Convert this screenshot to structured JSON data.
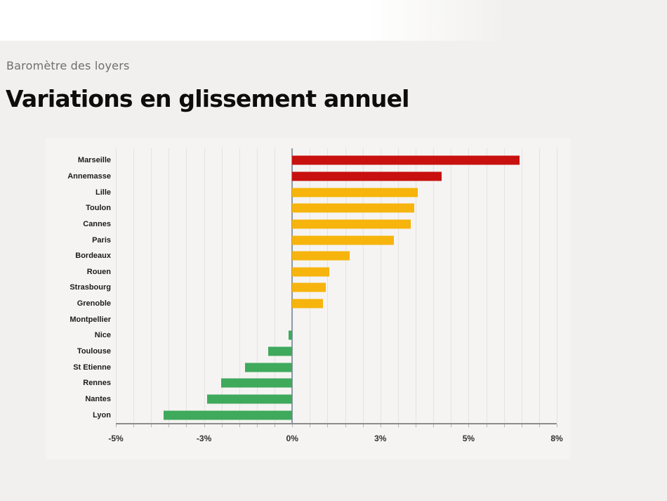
{
  "page": {
    "kicker": "Baromètre des loyers",
    "title": "Variations en glissement annuel"
  },
  "colors": {
    "page_background": "#f1f0ee",
    "header_band": "#ffffff",
    "panel_background": "#f5f4f2",
    "gridline": "#e4e3e0",
    "zero_line": "#8d99a6",
    "axis_line": "#8c8c8c",
    "strong_increase_red": "#C8100E",
    "increase_amber": "#F6B40C",
    "decrease_green": "#3FA95C"
  },
  "chart_data": {
    "type": "bar",
    "orientation": "horizontal",
    "title": "Variations en glissement annuel",
    "subtitle": "Baromètre des loyers",
    "unit": "%",
    "categories": [
      "Marseille",
      "Annemasse",
      "Lille",
      "Toulon",
      "Cannes",
      "Paris",
      "Bordeaux",
      "Rouen",
      "Strasbourg",
      "Grenoble",
      "Montpellier",
      "Nice",
      "Toulouse",
      "St Etienne",
      "Rennes",
      "Nantes",
      "Lyon"
    ],
    "values": [
      6.7,
      4.4,
      3.7,
      3.6,
      3.5,
      3.0,
      1.7,
      1.1,
      1.0,
      0.9,
      0.0,
      -0.1,
      -0.7,
      -1.4,
      -2.1,
      -2.5,
      -3.8
    ],
    "bar_colors": [
      "#C8100E",
      "#C8100E",
      "#F6B40C",
      "#F6B40C",
      "#F6B40C",
      "#F6B40C",
      "#F6B40C",
      "#F6B40C",
      "#F6B40C",
      "#F6B40C",
      "none",
      "#3FA95C",
      "#3FA95C",
      "#3FA95C",
      "#3FA95C",
      "#3FA95C",
      "#3FA95C"
    ],
    "color_meaning": {
      "#C8100E": "strong increase",
      "#F6B40C": "increase",
      "#3FA95C": "decrease"
    },
    "xlim": [
      -5.2,
      7.8
    ],
    "x_tick_labels": [
      "-5%",
      "-3%",
      "0%",
      "3%",
      "5%",
      "8%"
    ],
    "minor_gridlines_per_label_interval": 5,
    "grid": true,
    "legend_position": "none",
    "ylabel": "",
    "xlabel": ""
  }
}
